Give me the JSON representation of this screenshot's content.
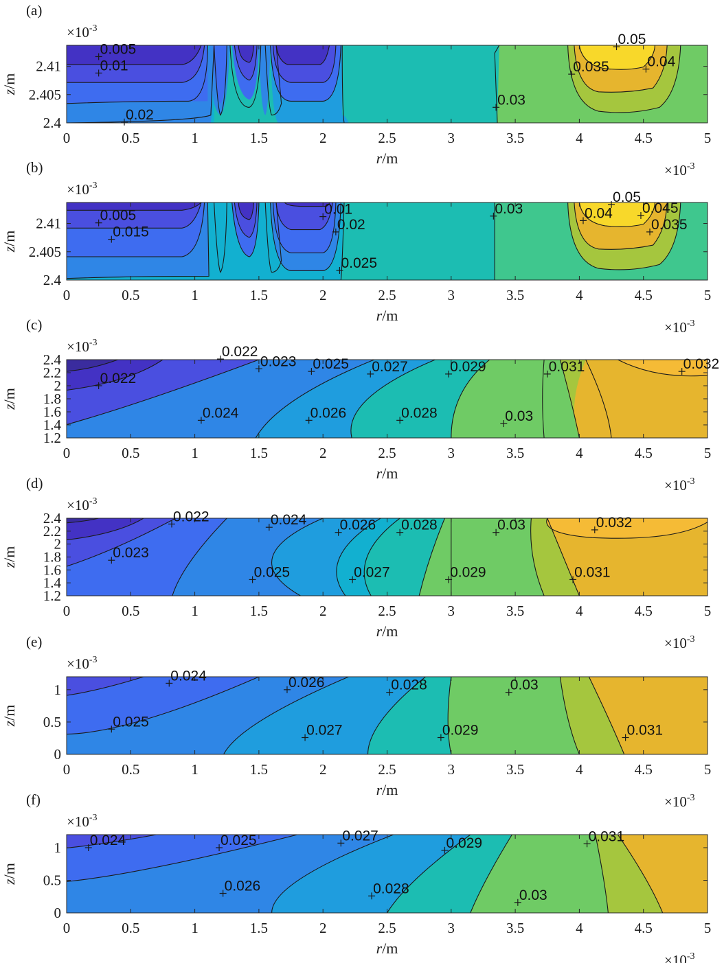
{
  "chart_data": [
    {
      "panel": "(a)",
      "type": "contour",
      "xlabel_var": "r",
      "xlabel_unit": "/m",
      "ylabel_var": "z",
      "ylabel_unit": "/m",
      "x_multiplier": "×10",
      "x_multiplier_exp": "-3",
      "y_multiplier": "×10",
      "y_multiplier_exp": "-3",
      "xlim": [
        0,
        5
      ],
      "ylim": [
        2.4,
        2.4137
      ],
      "xticks": [
        "0",
        "0.5",
        "1",
        "1.5",
        "2",
        "2.5",
        "3",
        "3.5",
        "4",
        "4.5",
        "5"
      ],
      "yticks": [
        {
          "v": 2.4,
          "label": "2.4"
        },
        {
          "v": 2.405,
          "label": "2.405"
        },
        {
          "v": 2.41,
          "label": "2.41"
        }
      ],
      "contour_labels": [
        {
          "text": "0.005",
          "x": 0.25,
          "y": 2.4117
        },
        {
          "text": "0.01",
          "x": 0.25,
          "y": 2.4088
        },
        {
          "text": "0.02",
          "x": 0.45,
          "y": 2.40015
        },
        {
          "text": "0.03",
          "x": 3.35,
          "y": 2.40275
        },
        {
          "text": "0.035",
          "x": 3.94,
          "y": 2.4086
        },
        {
          "text": "0.04",
          "x": 4.52,
          "y": 2.4095
        },
        {
          "text": "0.05",
          "x": 4.29,
          "y": 2.41345
        }
      ]
    },
    {
      "panel": "(b)",
      "type": "contour",
      "xlabel_var": "r",
      "xlabel_unit": "/m",
      "ylabel_var": "z",
      "ylabel_unit": "/m",
      "x_multiplier": "×10",
      "x_multiplier_exp": "-3",
      "y_multiplier": "×10",
      "y_multiplier_exp": "-3",
      "xlim": [
        0,
        5
      ],
      "ylim": [
        2.4,
        2.4137
      ],
      "xticks": [
        "0",
        "0.5",
        "1",
        "1.5",
        "2",
        "2.5",
        "3",
        "3.5",
        "4",
        "4.5",
        "5"
      ],
      "yticks": [
        {
          "v": 2.4,
          "label": "2.4"
        },
        {
          "v": 2.405,
          "label": "2.405"
        },
        {
          "v": 2.41,
          "label": "2.41"
        }
      ],
      "contour_labels": [
        {
          "text": "0.005",
          "x": 0.25,
          "y": 2.4101
        },
        {
          "text": "0.015",
          "x": 0.35,
          "y": 2.4072
        },
        {
          "text": "0.01",
          "x": 2.0,
          "y": 2.4112
        },
        {
          "text": "0.02",
          "x": 2.1,
          "y": 2.4085
        },
        {
          "text": "0.025",
          "x": 2.13,
          "y": 2.4017
        },
        {
          "text": "0.03",
          "x": 3.33,
          "y": 2.4113
        },
        {
          "text": "0.04",
          "x": 4.03,
          "y": 2.4105
        },
        {
          "text": "0.05",
          "x": 4.25,
          "y": 2.41335
        },
        {
          "text": "0.045",
          "x": 4.48,
          "y": 2.4114
        },
        {
          "text": "0.035",
          "x": 4.55,
          "y": 2.4085
        }
      ]
    },
    {
      "panel": "(c)",
      "type": "contour",
      "xlabel_var": "r",
      "xlabel_unit": "/m",
      "ylabel_var": "z",
      "ylabel_unit": "/m",
      "x_multiplier": "×10",
      "x_multiplier_exp": "-3",
      "y_multiplier": "×10",
      "y_multiplier_exp": "-3",
      "xlim": [
        0,
        5
      ],
      "ylim": [
        1.2,
        2.4
      ],
      "xticks": [
        "0",
        "0.5",
        "1",
        "1.5",
        "2",
        "2.5",
        "3",
        "3.5",
        "4",
        "4.5",
        "5"
      ],
      "yticks": [
        {
          "v": 1.2,
          "label": "1.2"
        },
        {
          "v": 1.4,
          "label": "1.4"
        },
        {
          "v": 1.6,
          "label": "1.6"
        },
        {
          "v": 1.8,
          "label": "1.8"
        },
        {
          "v": 2.0,
          "label": "2"
        },
        {
          "v": 2.2,
          "label": "2.2"
        },
        {
          "v": 2.4,
          "label": "2.4"
        }
      ],
      "contour_labels": [
        {
          "text": "0.022",
          "x": 0.25,
          "y": 2.0
        },
        {
          "text": "0.022",
          "x": 1.2,
          "y": 2.41
        },
        {
          "text": "0.023",
          "x": 1.5,
          "y": 2.26
        },
        {
          "text": "0.024",
          "x": 1.05,
          "y": 1.47
        },
        {
          "text": "0.025",
          "x": 1.91,
          "y": 2.22
        },
        {
          "text": "0.026",
          "x": 1.89,
          "y": 1.47
        },
        {
          "text": "0.027",
          "x": 2.37,
          "y": 2.18
        },
        {
          "text": "0.028",
          "x": 2.6,
          "y": 1.47
        },
        {
          "text": "0.029",
          "x": 2.98,
          "y": 2.18
        },
        {
          "text": "0.03",
          "x": 3.41,
          "y": 1.42
        },
        {
          "text": "0.031",
          "x": 3.75,
          "y": 2.18
        },
        {
          "text": "0.032",
          "x": 4.8,
          "y": 2.22
        }
      ]
    },
    {
      "panel": "(d)",
      "type": "contour",
      "xlabel_var": "r",
      "xlabel_unit": "/m",
      "ylabel_var": "z",
      "ylabel_unit": "/m",
      "x_multiplier": "×10",
      "x_multiplier_exp": "-3",
      "y_multiplier": "×10",
      "y_multiplier_exp": "-3",
      "xlim": [
        0,
        5
      ],
      "ylim": [
        1.2,
        2.4
      ],
      "xticks": [
        "0",
        "0.5",
        "1",
        "1.5",
        "2",
        "2.5",
        "3",
        "3.5",
        "4",
        "4.5",
        "5"
      ],
      "yticks": [
        {
          "v": 1.2,
          "label": "1.2"
        },
        {
          "v": 1.4,
          "label": "1.4"
        },
        {
          "v": 1.6,
          "label": "1.6"
        },
        {
          "v": 1.8,
          "label": "1.8"
        },
        {
          "v": 2.0,
          "label": "2"
        },
        {
          "v": 2.2,
          "label": "2.2"
        },
        {
          "v": 2.4,
          "label": "2.4"
        }
      ],
      "contour_labels": [
        {
          "text": "0.022",
          "x": 0.82,
          "y": 2.31
        },
        {
          "text": "0.023",
          "x": 0.35,
          "y": 1.75
        },
        {
          "text": "0.024",
          "x": 1.58,
          "y": 2.26
        },
        {
          "text": "0.025",
          "x": 1.45,
          "y": 1.45
        },
        {
          "text": "0.026",
          "x": 2.12,
          "y": 2.18
        },
        {
          "text": "0.027",
          "x": 2.23,
          "y": 1.45
        },
        {
          "text": "0.028",
          "x": 2.6,
          "y": 2.18
        },
        {
          "text": "0.029",
          "x": 2.98,
          "y": 1.45
        },
        {
          "text": "0.03",
          "x": 3.35,
          "y": 2.18
        },
        {
          "text": "0.031",
          "x": 3.95,
          "y": 1.45
        },
        {
          "text": "0.032",
          "x": 4.12,
          "y": 2.22
        }
      ]
    },
    {
      "panel": "(e)",
      "type": "contour",
      "xlabel_var": "r",
      "xlabel_unit": "/m",
      "ylabel_var": "z",
      "ylabel_unit": "/m",
      "x_multiplier": "×10",
      "x_multiplier_exp": "-3",
      "y_multiplier": "×10",
      "y_multiplier_exp": "-3",
      "xlim": [
        0,
        5
      ],
      "ylim": [
        0,
        1.2
      ],
      "xticks": [
        "0",
        "0.5",
        "1",
        "1.5",
        "2",
        "2.5",
        "3",
        "3.5",
        "4",
        "4.5",
        "5"
      ],
      "yticks": [
        {
          "v": 0,
          "label": "0"
        },
        {
          "v": 0.5,
          "label": "0.5"
        },
        {
          "v": 1.0,
          "label": "1"
        }
      ],
      "contour_labels": [
        {
          "text": "0.024",
          "x": 0.8,
          "y": 1.1
        },
        {
          "text": "0.025",
          "x": 0.35,
          "y": 0.39
        },
        {
          "text": "0.026",
          "x": 1.72,
          "y": 1.0
        },
        {
          "text": "0.027",
          "x": 1.86,
          "y": 0.26
        },
        {
          "text": "0.028",
          "x": 2.52,
          "y": 0.96
        },
        {
          "text": "0.029",
          "x": 2.92,
          "y": 0.26
        },
        {
          "text": "0.03",
          "x": 3.45,
          "y": 0.96
        },
        {
          "text": "0.031",
          "x": 4.36,
          "y": 0.26
        }
      ]
    },
    {
      "panel": "(f)",
      "type": "contour",
      "xlabel_var": "r",
      "xlabel_unit": "/m",
      "ylabel_var": "z",
      "ylabel_unit": "/m",
      "x_multiplier": "×10",
      "x_multiplier_exp": "-3",
      "y_multiplier": "×10",
      "y_multiplier_exp": "-3",
      "xlim": [
        0,
        5
      ],
      "ylim": [
        0,
        1.2
      ],
      "xticks": [
        "0",
        "0.5",
        "1",
        "1.5",
        "2",
        "2.5",
        "3",
        "3.5",
        "4",
        "4.5",
        "5"
      ],
      "yticks": [
        {
          "v": 0,
          "label": "0"
        },
        {
          "v": 0.5,
          "label": "0.5"
        },
        {
          "v": 1.0,
          "label": "1"
        }
      ],
      "contour_labels": [
        {
          "text": "0.024",
          "x": 0.17,
          "y": 1.0
        },
        {
          "text": "0.025",
          "x": 1.19,
          "y": 1.0
        },
        {
          "text": "0.026",
          "x": 1.22,
          "y": 0.3
        },
        {
          "text": "0.027",
          "x": 2.14,
          "y": 1.07
        },
        {
          "text": "0.028",
          "x": 2.38,
          "y": 0.26
        },
        {
          "text": "0.029",
          "x": 2.95,
          "y": 0.96
        },
        {
          "text": "0.03",
          "x": 3.52,
          "y": 0.16
        },
        {
          "text": "0.031",
          "x": 4.06,
          "y": 1.06
        }
      ]
    }
  ]
}
